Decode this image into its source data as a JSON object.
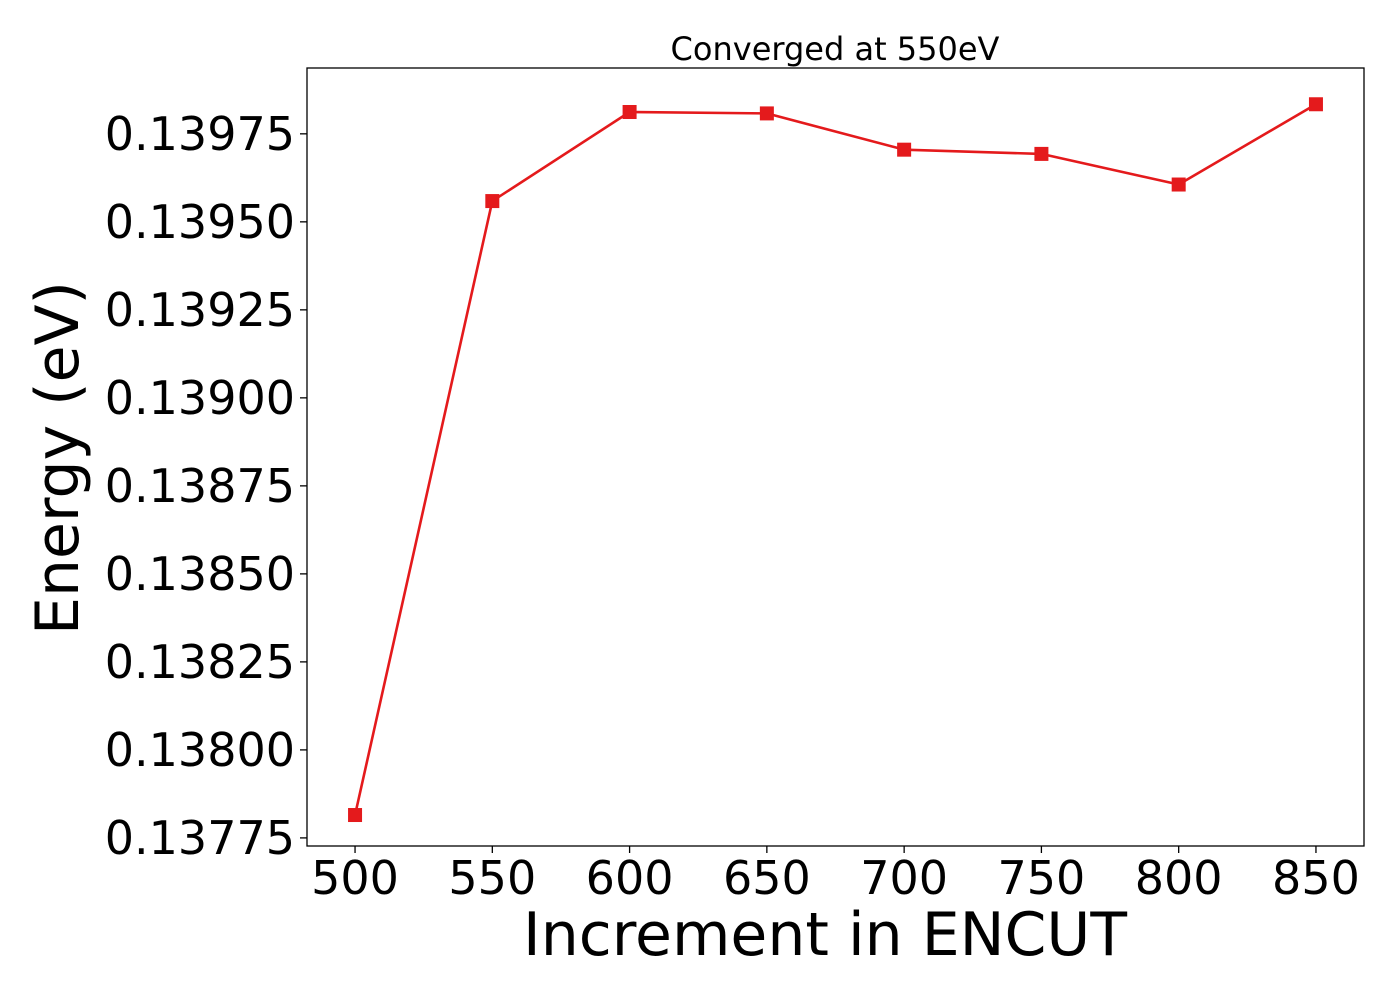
{
  "chart_data": {
    "type": "line",
    "title": "Converged at 550eV",
    "xlabel": "Increment in ENCUT",
    "ylabel": "Energy (eV)",
    "x": [
      500,
      550,
      600,
      650,
      700,
      750,
      800,
      850
    ],
    "series": [
      {
        "values": [
          0.137815,
          0.139559,
          0.139812,
          0.139808,
          0.139705,
          0.139693,
          0.139606,
          0.139834
        ],
        "color": "#e41a1c",
        "marker": "square"
      }
    ],
    "xticks": [
      500,
      550,
      600,
      650,
      700,
      750,
      800,
      850
    ],
    "xtick_labels": [
      "500",
      "550",
      "600",
      "650",
      "700",
      "750",
      "800",
      "850"
    ],
    "yticks": [
      0.13775,
      0.138,
      0.13825,
      0.1385,
      0.13875,
      0.139,
      0.13925,
      0.1395,
      0.13975
    ],
    "ytick_labels": [
      "0.13775",
      "0.13800",
      "0.13825",
      "0.13850",
      "0.13875",
      "0.13900",
      "0.13925",
      "0.13950",
      "0.13975"
    ],
    "xlim": [
      482.5,
      867.5
    ],
    "ylim": [
      0.137727,
      0.139937
    ],
    "grid": false,
    "legend": "none"
  }
}
